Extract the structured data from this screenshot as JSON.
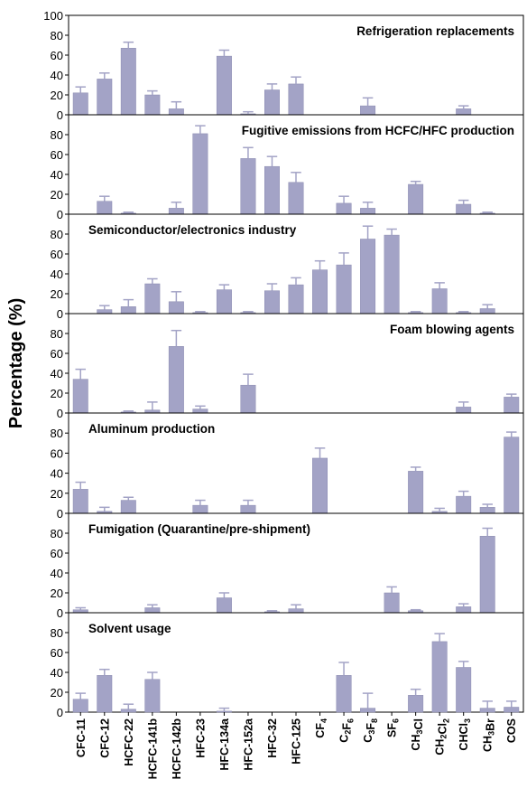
{
  "chart_data": {
    "type": "bar",
    "ylabel": "Percentage (%)",
    "ylim": [
      0,
      100
    ],
    "yticks": [
      0,
      20,
      40,
      60,
      80,
      100
    ],
    "bar_color": "#a3a3c6",
    "categories": [
      {
        "id": "CFC-11",
        "parts": [
          {
            "t": "CFC-11"
          }
        ]
      },
      {
        "id": "CFC-12",
        "parts": [
          {
            "t": "CFC-12"
          }
        ]
      },
      {
        "id": "HCFC-22",
        "parts": [
          {
            "t": "HCFC-22"
          }
        ]
      },
      {
        "id": "HCFC-141b",
        "parts": [
          {
            "t": "HCFC-141b"
          }
        ]
      },
      {
        "id": "HCFC-142b",
        "parts": [
          {
            "t": "HCFC-142b"
          }
        ]
      },
      {
        "id": "HFC-23",
        "parts": [
          {
            "t": "HFC-23"
          }
        ]
      },
      {
        "id": "HFC-134a",
        "parts": [
          {
            "t": "HFC-134a"
          }
        ]
      },
      {
        "id": "HFC-152a",
        "parts": [
          {
            "t": "HFC-152a"
          }
        ]
      },
      {
        "id": "HFC-32",
        "parts": [
          {
            "t": "HFC-32"
          }
        ]
      },
      {
        "id": "HFC-125",
        "parts": [
          {
            "t": "HFC-125"
          }
        ]
      },
      {
        "id": "CF4",
        "parts": [
          {
            "t": "CF"
          },
          {
            "t": "4",
            "sub": true
          }
        ]
      },
      {
        "id": "C2F6",
        "parts": [
          {
            "t": "C"
          },
          {
            "t": "2",
            "sub": true
          },
          {
            "t": "F"
          },
          {
            "t": "6",
            "sub": true
          }
        ]
      },
      {
        "id": "C3F8",
        "parts": [
          {
            "t": "C"
          },
          {
            "t": "3",
            "sub": true
          },
          {
            "t": "F"
          },
          {
            "t": "8",
            "sub": true
          }
        ]
      },
      {
        "id": "SF6",
        "parts": [
          {
            "t": "SF"
          },
          {
            "t": "6",
            "sub": true
          }
        ]
      },
      {
        "id": "CH3Cl",
        "parts": [
          {
            "t": "CH"
          },
          {
            "t": "3",
            "sub": true
          },
          {
            "t": "Cl"
          }
        ]
      },
      {
        "id": "CH2Cl2",
        "parts": [
          {
            "t": "CH"
          },
          {
            "t": "2",
            "sub": true
          },
          {
            "t": "Cl"
          },
          {
            "t": "2",
            "sub": true
          }
        ]
      },
      {
        "id": "CHCl3",
        "parts": [
          {
            "t": "CHCl"
          },
          {
            "t": "3",
            "sub": true
          }
        ]
      },
      {
        "id": "CH3Br",
        "parts": [
          {
            "t": "CH"
          },
          {
            "t": "3",
            "sub": true
          },
          {
            "t": "Br"
          }
        ]
      },
      {
        "id": "COS",
        "parts": [
          {
            "t": "COS"
          }
        ]
      }
    ],
    "panels": [
      {
        "title": "Refrigeration replacements",
        "title_align": "right",
        "values": [
          22,
          36,
          67,
          20,
          6,
          null,
          59,
          1,
          25,
          31,
          null,
          null,
          9,
          null,
          null,
          null,
          6,
          null,
          null
        ],
        "errors": [
          6,
          6,
          6,
          4,
          7,
          null,
          6,
          2,
          6,
          7,
          null,
          null,
          8,
          null,
          null,
          null,
          3,
          null,
          null
        ]
      },
      {
        "title": "Fugitive emissions from HCFC/HFC production",
        "title_align": "right",
        "values": [
          null,
          13,
          1,
          null,
          6,
          81,
          null,
          56,
          48,
          32,
          null,
          11,
          6,
          null,
          30,
          null,
          10,
          1,
          null
        ],
        "errors": [
          null,
          5,
          1,
          null,
          6,
          8,
          null,
          11,
          10,
          10,
          null,
          7,
          6,
          null,
          3,
          null,
          4,
          1,
          null
        ]
      },
      {
        "title": "Semiconductor/electronics industry",
        "title_align": "left",
        "values": [
          null,
          4,
          7,
          30,
          12,
          1,
          24,
          1,
          23,
          29,
          44,
          49,
          75,
          79,
          1,
          25,
          1,
          5,
          null
        ],
        "errors": [
          null,
          4,
          7,
          5,
          10,
          1,
          5,
          1,
          7,
          7,
          9,
          12,
          13,
          6,
          1,
          6,
          1,
          4,
          null
        ]
      },
      {
        "title": "Foam blowing agents",
        "title_align": "right",
        "values": [
          34,
          null,
          1,
          3,
          67,
          4,
          null,
          28,
          null,
          null,
          null,
          null,
          null,
          null,
          null,
          null,
          6,
          null,
          16
        ],
        "errors": [
          10,
          null,
          1,
          8,
          16,
          3,
          null,
          11,
          null,
          null,
          null,
          null,
          null,
          null,
          null,
          null,
          5,
          null,
          3
        ]
      },
      {
        "title": "Aluminum production",
        "title_align": "left",
        "values": [
          24,
          2,
          13,
          null,
          null,
          8,
          null,
          8,
          null,
          null,
          55,
          null,
          null,
          null,
          42,
          2,
          17,
          6,
          76
        ],
        "errors": [
          7,
          4,
          3,
          null,
          null,
          5,
          null,
          5,
          null,
          null,
          10,
          null,
          null,
          null,
          4,
          3,
          5,
          3,
          5
        ]
      },
      {
        "title": "Fumigation (Quarantine/pre-shipment)",
        "title_align": "left",
        "values": [
          3,
          null,
          null,
          5,
          null,
          null,
          15,
          null,
          1,
          4,
          null,
          null,
          null,
          20,
          2,
          null,
          6,
          77,
          null
        ],
        "errors": [
          2,
          null,
          null,
          3,
          null,
          null,
          5,
          null,
          1,
          4,
          null,
          null,
          null,
          6,
          1,
          null,
          3,
          8,
          null
        ]
      },
      {
        "title": "Solvent usage",
        "title_align": "left",
        "values": [
          13,
          37,
          3,
          33,
          null,
          null,
          1,
          null,
          null,
          null,
          null,
          37,
          4,
          null,
          17,
          71,
          45,
          4,
          5
        ],
        "errors": [
          6,
          6,
          5,
          7,
          null,
          null,
          3,
          null,
          null,
          null,
          null,
          13,
          15,
          null,
          6,
          8,
          6,
          7,
          6
        ]
      }
    ]
  }
}
